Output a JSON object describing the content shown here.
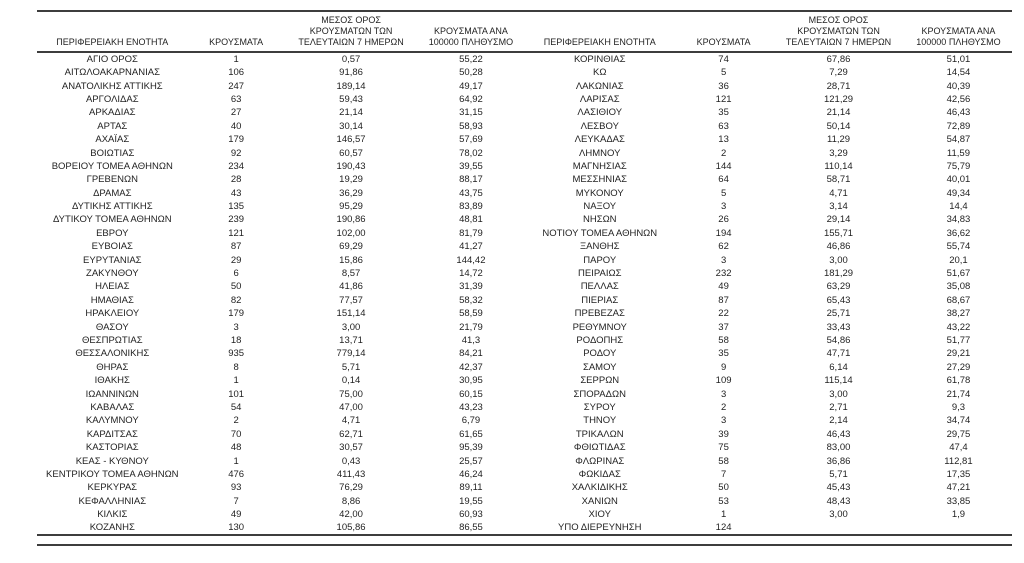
{
  "table": {
    "headers": {
      "region": "ΠΕΡΙΦΕΡΕΙΑΚΗ ΕΝΟΤΗΤΑ",
      "cases": "ΚΡΟΥΣΜΑΤΑ",
      "avg7": "ΜΕΣΟΣ ΟΡΟΣ ΚΡΟΥΣΜΑΤΩΝ ΤΩΝ ΤΕΛΕΥΤΑΙΩΝ 7 ΗΜΕΡΩΝ",
      "per100k": "ΚΡΟΥΣΜΑΤΑ ΑΝΑ 100000 ΠΛΗΘΥΣΜΟ"
    },
    "left_rows": [
      [
        "ΑΓΙΟ ΟΡΟΣ",
        "1",
        "0,57",
        "55,22"
      ],
      [
        "ΑΙΤΩΛΟΑΚΑΡΝΑΝΙΑΣ",
        "106",
        "91,86",
        "50,28"
      ],
      [
        "ΑΝΑΤΟΛΙΚΗΣ ΑΤΤΙΚΗΣ",
        "247",
        "189,14",
        "49,17"
      ],
      [
        "ΑΡΓΟΛΙΔΑΣ",
        "63",
        "59,43",
        "64,92"
      ],
      [
        "ΑΡΚΑΔΙΑΣ",
        "27",
        "21,14",
        "31,15"
      ],
      [
        "ΑΡΤΑΣ",
        "40",
        "30,14",
        "58,93"
      ],
      [
        "ΑΧΑΪΑΣ",
        "179",
        "146,57",
        "57,69"
      ],
      [
        "ΒΟΙΩΤΙΑΣ",
        "92",
        "60,57",
        "78,02"
      ],
      [
        "ΒΟΡΕΙΟΥ ΤΟΜΕΑ ΑΘΗΝΩΝ",
        "234",
        "190,43",
        "39,55"
      ],
      [
        "ΓΡΕΒΕΝΩΝ",
        "28",
        "19,29",
        "88,17"
      ],
      [
        "ΔΡΑΜΑΣ",
        "43",
        "36,29",
        "43,75"
      ],
      [
        "ΔΥΤΙΚΗΣ ΑΤΤΙΚΗΣ",
        "135",
        "95,29",
        "83,89"
      ],
      [
        "ΔΥΤΙΚΟΥ ΤΟΜΕΑ ΑΘΗΝΩΝ",
        "239",
        "190,86",
        "48,81"
      ],
      [
        "ΕΒΡΟΥ",
        "121",
        "102,00",
        "81,79"
      ],
      [
        "ΕΥΒΟΙΑΣ",
        "87",
        "69,29",
        "41,27"
      ],
      [
        "ΕΥΡΥΤΑΝΙΑΣ",
        "29",
        "15,86",
        "144,42"
      ],
      [
        "ΖΑΚΥΝΘΟΥ",
        "6",
        "8,57",
        "14,72"
      ],
      [
        "ΗΛΕΙΑΣ",
        "50",
        "41,86",
        "31,39"
      ],
      [
        "ΗΜΑΘΙΑΣ",
        "82",
        "77,57",
        "58,32"
      ],
      [
        "ΗΡΑΚΛΕΙΟΥ",
        "179",
        "151,14",
        "58,59"
      ],
      [
        "ΘΑΣΟΥ",
        "3",
        "3,00",
        "21,79"
      ],
      [
        "ΘΕΣΠΡΩΤΙΑΣ",
        "18",
        "13,71",
        "41,3"
      ],
      [
        "ΘΕΣΣΑΛΟΝΙΚΗΣ",
        "935",
        "779,14",
        "84,21"
      ],
      [
        "ΘΗΡΑΣ",
        "8",
        "5,71",
        "42,37"
      ],
      [
        "ΙΘΑΚΗΣ",
        "1",
        "0,14",
        "30,95"
      ],
      [
        "ΙΩΑΝΝΙΝΩΝ",
        "101",
        "75,00",
        "60,15"
      ],
      [
        "ΚΑΒΑΛΑΣ",
        "54",
        "47,00",
        "43,23"
      ],
      [
        "ΚΑΛΥΜΝΟΥ",
        "2",
        "4,71",
        "6,79"
      ],
      [
        "ΚΑΡΔΙΤΣΑΣ",
        "70",
        "62,71",
        "61,65"
      ],
      [
        "ΚΑΣΤΟΡΙΑΣ",
        "48",
        "30,57",
        "95,39"
      ],
      [
        "ΚΕΑΣ - ΚΥΘΝΟΥ",
        "1",
        "0,43",
        "25,57"
      ],
      [
        "ΚΕΝΤΡΙΚΟΥ ΤΟΜΕΑ ΑΘΗΝΩΝ",
        "476",
        "411,43",
        "46,24"
      ],
      [
        "ΚΕΡΚΥΡΑΣ",
        "93",
        "76,29",
        "89,11"
      ],
      [
        "ΚΕΦΑΛΛΗΝΙΑΣ",
        "7",
        "8,86",
        "19,55"
      ],
      [
        "ΚΙΛΚΙΣ",
        "49",
        "42,00",
        "60,93"
      ],
      [
        "ΚΟΖΑΝΗΣ",
        "130",
        "105,86",
        "86,55"
      ]
    ],
    "right_rows": [
      [
        "ΚΟΡΙΝΘΙΑΣ",
        "74",
        "67,86",
        "51,01"
      ],
      [
        "ΚΩ",
        "5",
        "7,29",
        "14,54"
      ],
      [
        "ΛΑΚΩΝΙΑΣ",
        "36",
        "28,71",
        "40,39"
      ],
      [
        "ΛΑΡΙΣΑΣ",
        "121",
        "121,29",
        "42,56"
      ],
      [
        "ΛΑΣΙΘΙΟΥ",
        "35",
        "21,14",
        "46,43"
      ],
      [
        "ΛΕΣΒΟΥ",
        "63",
        "50,14",
        "72,89"
      ],
      [
        "ΛΕΥΚΑΔΑΣ",
        "13",
        "11,29",
        "54,87"
      ],
      [
        "ΛΗΜΝΟΥ",
        "2",
        "3,29",
        "11,59"
      ],
      [
        "ΜΑΓΝΗΣΙΑΣ",
        "144",
        "110,14",
        "75,79"
      ],
      [
        "ΜΕΣΣΗΝΙΑΣ",
        "64",
        "58,71",
        "40,01"
      ],
      [
        "ΜΥΚΟΝΟΥ",
        "5",
        "4,71",
        "49,34"
      ],
      [
        "ΝΑΞΟΥ",
        "3",
        "3,14",
        "14,4"
      ],
      [
        "ΝΗΣΩΝ",
        "26",
        "29,14",
        "34,83"
      ],
      [
        "ΝΟΤΙΟΥ ΤΟΜΕΑ ΑΘΗΝΩΝ",
        "194",
        "155,71",
        "36,62"
      ],
      [
        "ΞΑΝΘΗΣ",
        "62",
        "46,86",
        "55,74"
      ],
      [
        "ΠΑΡΟΥ",
        "3",
        "3,00",
        "20,1"
      ],
      [
        "ΠΕΙΡΑΙΩΣ",
        "232",
        "181,29",
        "51,67"
      ],
      [
        "ΠΕΛΛΑΣ",
        "49",
        "63,29",
        "35,08"
      ],
      [
        "ΠΙΕΡΙΑΣ",
        "87",
        "65,43",
        "68,67"
      ],
      [
        "ΠΡΕΒΕΖΑΣ",
        "22",
        "25,71",
        "38,27"
      ],
      [
        "ΡΕΘΥΜΝΟΥ",
        "37",
        "33,43",
        "43,22"
      ],
      [
        "ΡΟΔΟΠΗΣ",
        "58",
        "54,86",
        "51,77"
      ],
      [
        "ΡΟΔΟΥ",
        "35",
        "47,71",
        "29,21"
      ],
      [
        "ΣΑΜΟΥ",
        "9",
        "6,14",
        "27,29"
      ],
      [
        "ΣΕΡΡΩΝ",
        "109",
        "115,14",
        "61,78"
      ],
      [
        "ΣΠΟΡΑΔΩΝ",
        "3",
        "3,00",
        "21,74"
      ],
      [
        "ΣΥΡΟΥ",
        "2",
        "2,71",
        "9,3"
      ],
      [
        "ΤΗΝΟΥ",
        "3",
        "2,14",
        "34,74"
      ],
      [
        "ΤΡΙΚΑΛΩΝ",
        "39",
        "46,43",
        "29,75"
      ],
      [
        "ΦΘΙΩΤΙΔΑΣ",
        "75",
        "83,00",
        "47,4"
      ],
      [
        "ΦΛΩΡΙΝΑΣ",
        "58",
        "36,86",
        "112,81"
      ],
      [
        "ΦΩΚΙΔΑΣ",
        "7",
        "5,71",
        "17,35"
      ],
      [
        "ΧΑΛΚΙΔΙΚΗΣ",
        "50",
        "45,43",
        "47,21"
      ],
      [
        "ΧΑΝΙΩΝ",
        "53",
        "48,43",
        "33,85"
      ],
      [
        "ΧΙΟΥ",
        "1",
        "3,00",
        "1,9"
      ],
      [
        "ΥΠΟ ΔΙΕΡΕΥΝΗΣΗ",
        "124",
        "",
        ""
      ]
    ],
    "colors": {
      "rule": "#3d3d3d",
      "text": "#1f1f1f",
      "background": "#ffffff"
    }
  }
}
